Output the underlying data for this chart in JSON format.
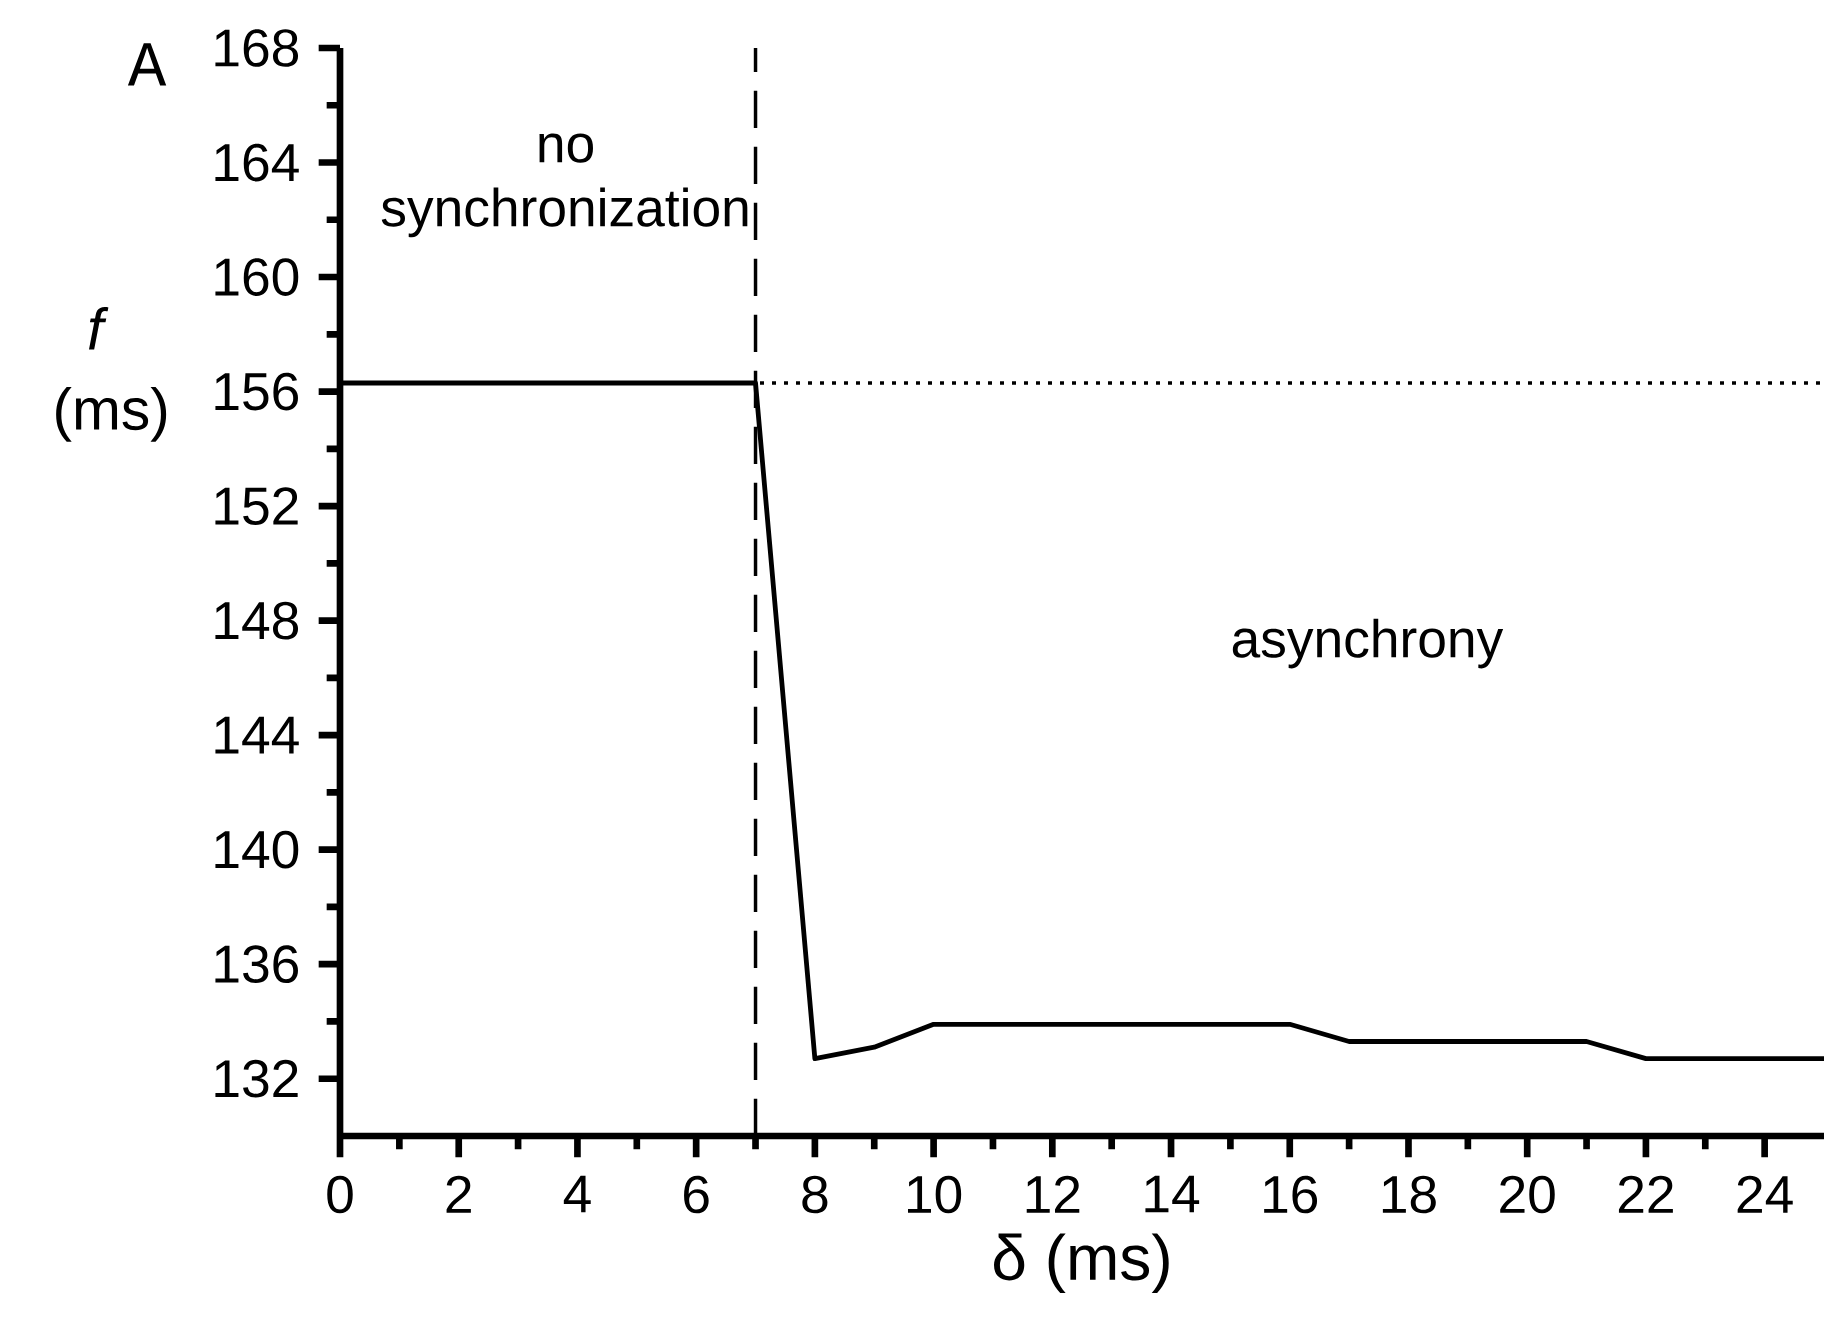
{
  "chart_data": {
    "type": "line",
    "xlabel": "δ (ms)",
    "ylabel": "*f* (ms)",
    "x": [
      0,
      1,
      2,
      3,
      4,
      5,
      6,
      7,
      8,
      9,
      10,
      11,
      12,
      13,
      14,
      15,
      16,
      17,
      18,
      19,
      20,
      21,
      22,
      23,
      24,
      25
    ],
    "values": [
      156.3,
      156.3,
      156.3,
      156.3,
      156.3,
      156.3,
      156.3,
      156.3,
      132.7,
      133.1,
      133.9,
      133.9,
      133.9,
      133.9,
      133.9,
      133.9,
      133.9,
      133.3,
      133.3,
      133.3,
      133.3,
      133.3,
      132.7,
      132.7,
      132.7,
      132.7
    ],
    "color": "#000000",
    "marker": "none",
    "line_style": "solid",
    "grid": false,
    "xlim": [
      0,
      25
    ],
    "xticks": [
      0,
      2,
      4,
      6,
      8,
      10,
      12,
      14,
      16,
      18,
      20,
      22,
      24
    ],
    "ylim": [
      130,
      168
    ],
    "yticks": [
      132,
      136,
      140,
      144,
      148,
      152,
      156,
      160,
      164,
      168
    ],
    "ref_lines": [
      {
        "axis": "x",
        "value": 7,
        "line_style": "dashed",
        "color": "#000000"
      },
      {
        "axis": "y",
        "value": 156.3,
        "line_style": "dotted",
        "color": "#000000"
      }
    ],
    "annotations": [
      "A",
      "no synchronization",
      "asynchrony"
    ]
  }
}
